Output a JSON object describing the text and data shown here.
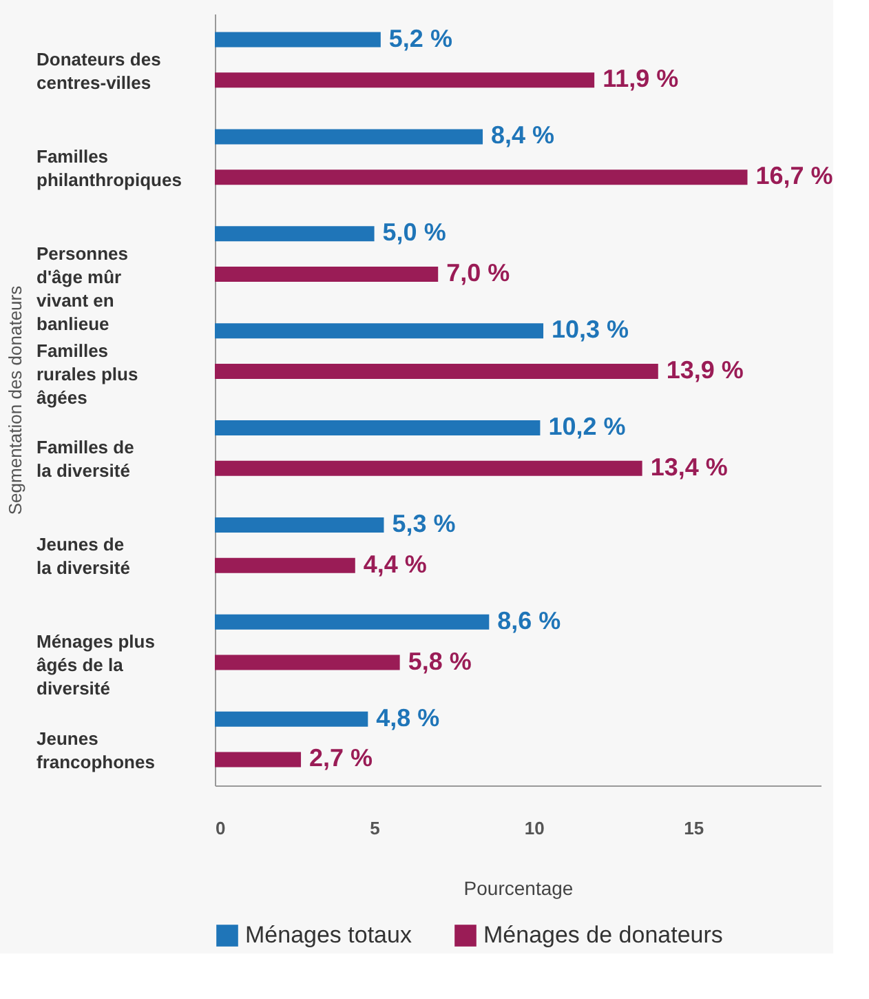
{
  "chart_data": {
    "type": "bar",
    "orientation": "horizontal",
    "xlabel": "Pourcentage",
    "ylabel": "Segmentation des donateurs",
    "categories": [
      "Donateurs des\ncentres-villes",
      "Familles\nphilanthropiques",
      "Personnes\nd'âge mûr\nvivant en\nbanlieue",
      "Familles\nrurales plus\nâgées",
      "Familles de\nla diversité",
      "Jeunes de\nla diversité",
      "Ménages plus\nâgés de la\ndiversité",
      "Jeunes\nfrancophones"
    ],
    "series": [
      {
        "name": "Ménages totaux",
        "color": "#1f75b8",
        "values": [
          5.2,
          8.4,
          5.0,
          10.3,
          10.2,
          5.3,
          8.6,
          4.8
        ],
        "value_labels": [
          "5,2 %",
          "8,4 %",
          "5,0 %",
          "10,3 %",
          "10,2 %",
          "5,3 %",
          "8,6 %",
          "4,8 %"
        ]
      },
      {
        "name": "Ménages de donateurs",
        "color": "#9a1c56",
        "values": [
          11.9,
          16.7,
          7.0,
          13.9,
          13.4,
          4.4,
          5.8,
          2.7
        ],
        "value_labels": [
          "11,9 %",
          "16,7 %",
          "7,0 %",
          "13,9 %",
          "13,4 %",
          "4,4 %",
          "5,8 %",
          "2,7 %"
        ]
      }
    ],
    "xlim": [
      0,
      19
    ],
    "xticks": [
      0,
      5,
      10,
      15
    ],
    "grid": false,
    "legend": "bottom"
  }
}
